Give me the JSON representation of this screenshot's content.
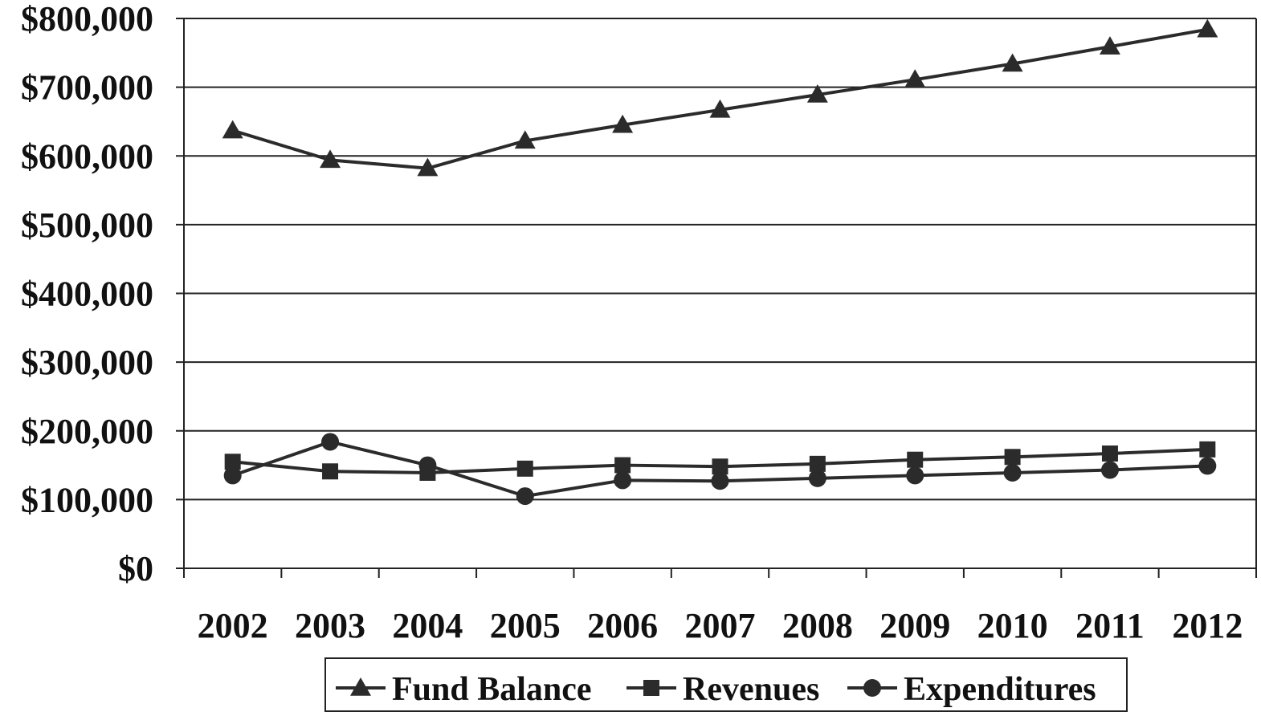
{
  "chart_data": {
    "type": "line",
    "title": "",
    "xlabel": "",
    "ylabel": "",
    "categories": [
      "2002",
      "2003",
      "2004",
      "2005",
      "2006",
      "2007",
      "2008",
      "2009",
      "2010",
      "2011",
      "2012"
    ],
    "ylim": [
      0,
      800000
    ],
    "yticks": [
      0,
      100000,
      200000,
      300000,
      400000,
      500000,
      600000,
      700000,
      800000
    ],
    "ytick_labels": [
      "$0",
      "$100,000",
      "$200,000",
      "$300,000",
      "$400,000",
      "$500,000",
      "$600,000",
      "$700,000",
      "$800,000"
    ],
    "grid": "horizontal",
    "legend_position": "bottom",
    "series": [
      {
        "name": "Fund Balance",
        "marker": "triangle",
        "color": "#2b2b2b",
        "values": [
          637000,
          594000,
          582000,
          622000,
          645000,
          667000,
          689000,
          711000,
          734000,
          759000,
          784000
        ]
      },
      {
        "name": "Revenues",
        "marker": "square",
        "color": "#2b2b2b",
        "values": [
          155000,
          141000,
          139000,
          145000,
          150000,
          148000,
          152000,
          158000,
          162000,
          167000,
          173000
        ]
      },
      {
        "name": "Expenditures",
        "marker": "circle",
        "color": "#2b2b2b",
        "values": [
          135000,
          184000,
          150000,
          105000,
          128000,
          127000,
          131000,
          135000,
          139000,
          143000,
          149000
        ]
      }
    ]
  }
}
